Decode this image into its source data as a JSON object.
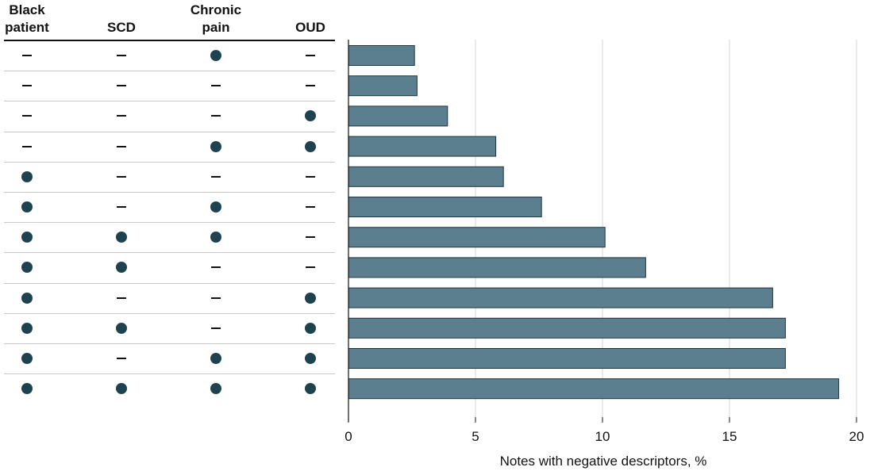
{
  "table": {
    "headers": [
      {
        "key": "black_patient",
        "lines": [
          "Black",
          "patient"
        ]
      },
      {
        "key": "scd",
        "lines": [
          "SCD"
        ]
      },
      {
        "key": "chronic_pain",
        "lines": [
          "Chronic",
          "pain"
        ]
      },
      {
        "key": "oud",
        "lines": [
          "OUD"
        ]
      }
    ],
    "rows": [
      {
        "black_patient": false,
        "scd": false,
        "chronic_pain": true,
        "oud": false
      },
      {
        "black_patient": false,
        "scd": false,
        "chronic_pain": false,
        "oud": false
      },
      {
        "black_patient": false,
        "scd": false,
        "chronic_pain": false,
        "oud": true
      },
      {
        "black_patient": false,
        "scd": false,
        "chronic_pain": true,
        "oud": true
      },
      {
        "black_patient": true,
        "scd": false,
        "chronic_pain": false,
        "oud": false
      },
      {
        "black_patient": true,
        "scd": false,
        "chronic_pain": true,
        "oud": false
      },
      {
        "black_patient": true,
        "scd": true,
        "chronic_pain": true,
        "oud": false
      },
      {
        "black_patient": true,
        "scd": true,
        "chronic_pain": false,
        "oud": false
      },
      {
        "black_patient": true,
        "scd": false,
        "chronic_pain": false,
        "oud": true
      },
      {
        "black_patient": true,
        "scd": true,
        "chronic_pain": false,
        "oud": true
      },
      {
        "black_patient": true,
        "scd": false,
        "chronic_pain": true,
        "oud": true
      },
      {
        "black_patient": true,
        "scd": true,
        "chronic_pain": true,
        "oud": true
      }
    ]
  },
  "colors": {
    "bar_fill": "#5b7f8e",
    "bar_stroke": "#1e3540",
    "dot": "#1e4250",
    "gridline": "#d4d4d4"
  },
  "chart_data": {
    "type": "bar",
    "orientation": "horizontal",
    "values": [
      2.6,
      2.7,
      3.9,
      5.8,
      6.1,
      7.6,
      10.1,
      11.7,
      16.7,
      17.2,
      17.2,
      19.3
    ],
    "xlabel": "Notes with negative descriptors, %",
    "xlim": [
      0,
      20
    ],
    "xticks": [
      0,
      5,
      10,
      15,
      20
    ],
    "grid": true
  }
}
